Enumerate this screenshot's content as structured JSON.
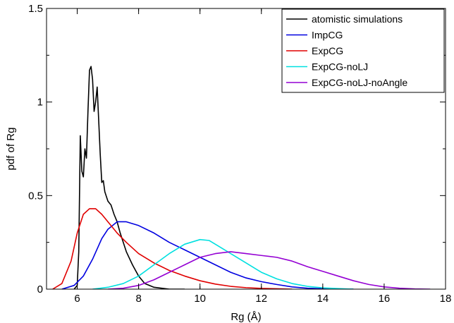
{
  "chart_data": {
    "type": "line",
    "title": "",
    "xlabel": "Rg (Å)",
    "ylabel": "pdf of Rg",
    "xlim": [
      5,
      18
    ],
    "ylim": [
      0,
      1.5
    ],
    "xticks": [
      6,
      8,
      10,
      12,
      14,
      16,
      18
    ],
    "xtick_labels": [
      "6",
      "8",
      "10",
      "12",
      "14",
      "16",
      "18"
    ],
    "yticks": [
      0,
      0.5,
      1,
      1.5
    ],
    "ytick_labels": [
      "0",
      "0.5",
      "1",
      "1.5"
    ],
    "grid": false,
    "legend_position": "top-right",
    "series": [
      {
        "name": "atomistic simulations",
        "color": "#000000",
        "x": [
          5.9,
          6.0,
          6.05,
          6.1,
          6.15,
          6.2,
          6.25,
          6.3,
          6.35,
          6.4,
          6.45,
          6.5,
          6.55,
          6.6,
          6.65,
          6.7,
          6.75,
          6.8,
          6.85,
          6.9,
          7.0,
          7.1,
          7.2,
          7.3,
          7.4,
          7.5,
          7.6,
          7.8,
          8.0,
          8.2,
          8.5,
          9.0,
          9.5
        ],
        "y": [
          0.0,
          0.02,
          0.2,
          0.82,
          0.63,
          0.6,
          0.75,
          0.7,
          0.95,
          1.17,
          1.19,
          1.12,
          0.95,
          1.0,
          1.08,
          0.9,
          0.72,
          0.57,
          0.58,
          0.52,
          0.47,
          0.45,
          0.4,
          0.36,
          0.3,
          0.25,
          0.2,
          0.13,
          0.07,
          0.03,
          0.01,
          0.0,
          0.0
        ]
      },
      {
        "name": "ImpCG",
        "color": "#0000e0",
        "x": [
          5.5,
          5.9,
          6.2,
          6.5,
          6.8,
          7.0,
          7.3,
          7.6,
          8.0,
          8.5,
          9.0,
          9.5,
          10.0,
          10.5,
          11.0,
          11.5,
          12.0,
          12.5,
          13.0,
          13.5,
          14.0,
          14.5,
          15.0
        ],
        "y": [
          0.0,
          0.02,
          0.07,
          0.16,
          0.27,
          0.32,
          0.36,
          0.36,
          0.34,
          0.3,
          0.25,
          0.21,
          0.17,
          0.13,
          0.09,
          0.06,
          0.04,
          0.025,
          0.012,
          0.005,
          0.002,
          0.001,
          0.0
        ]
      },
      {
        "name": "ExpCG",
        "color": "#e00000",
        "x": [
          5.2,
          5.5,
          5.8,
          6.0,
          6.2,
          6.4,
          6.6,
          6.8,
          7.0,
          7.3,
          7.6,
          8.0,
          8.5,
          9.0,
          9.5,
          10.0,
          10.5,
          11.0,
          11.5,
          12.0,
          12.5,
          13.0
        ],
        "y": [
          0.0,
          0.03,
          0.15,
          0.3,
          0.4,
          0.43,
          0.43,
          0.4,
          0.36,
          0.3,
          0.25,
          0.19,
          0.14,
          0.1,
          0.07,
          0.045,
          0.027,
          0.015,
          0.008,
          0.004,
          0.002,
          0.0
        ]
      },
      {
        "name": "ExpCG-noLJ",
        "color": "#00e0e0",
        "x": [
          6.5,
          7.0,
          7.5,
          8.0,
          8.5,
          9.0,
          9.5,
          10.0,
          10.3,
          10.6,
          11.0,
          11.5,
          12.0,
          12.5,
          13.0,
          13.5,
          14.0,
          14.5,
          15.0
        ],
        "y": [
          0.0,
          0.01,
          0.03,
          0.07,
          0.13,
          0.19,
          0.24,
          0.265,
          0.26,
          0.23,
          0.19,
          0.14,
          0.09,
          0.055,
          0.03,
          0.015,
          0.007,
          0.003,
          0.0
        ]
      },
      {
        "name": "ExpCG-noLJ-noAngle",
        "color": "#9400d3",
        "x": [
          7.0,
          7.5,
          8.0,
          8.5,
          9.0,
          9.5,
          10.0,
          10.5,
          11.0,
          11.5,
          12.0,
          12.5,
          13.0,
          13.5,
          14.0,
          14.5,
          15.0,
          15.5,
          16.0,
          16.5,
          17.0,
          17.5
        ],
        "y": [
          0.0,
          0.005,
          0.02,
          0.05,
          0.09,
          0.13,
          0.17,
          0.19,
          0.2,
          0.19,
          0.18,
          0.17,
          0.15,
          0.12,
          0.095,
          0.07,
          0.045,
          0.025,
          0.012,
          0.005,
          0.001,
          0.0
        ]
      }
    ]
  }
}
